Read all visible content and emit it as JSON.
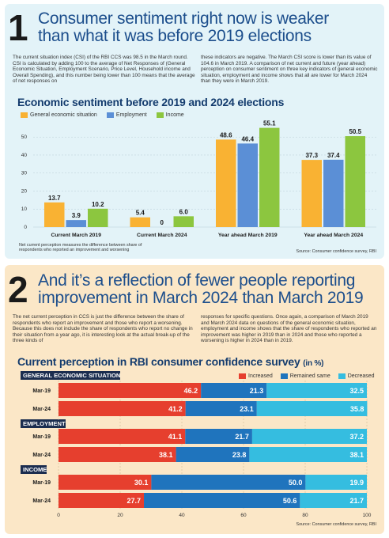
{
  "section1": {
    "number": "1",
    "headline_line1": "Consumer sentiment right now is weaker",
    "headline_line2": "than what it was before 2019 elections",
    "body_left": "The current situation index (CSI) of the RBI CCS was 98.5 in the March round. CSI is calculated by adding 100 to the average of Net Responses of (General Economic Situation, Employment Scenario, Price Level, Household income and Overall Spending), and this number being lower than 100 means that the average of net responses on",
    "body_right": "these indicators are negative. The March CSI score is lower than its value of 104.6 in March 2019. A comparison of net current and future (year ahead) perception on consumer sentiment on three key indicators of general economic situation, employment and income shows that all are lower for March 2024 than they were in March 2019.",
    "chart_title": "Economic sentiment before 2019 and 2024 elections",
    "note": "Net current perception measures the difference between share of respondents who reported an improvement and worsening",
    "source": "Source: Consumer confidence survey, RBI"
  },
  "section2": {
    "number": "2",
    "headline_line1": "And it’s a reflection of fewer people reporting",
    "headline_line2": "improvement in March 2024 than March 2019",
    "body_left": "The net current perception in CCS is just the difference between the share of respondents who report an improvement and those who report a worsening. Because this does not include the share of respondents who report no change in their situation from a year ago, it is interesting look at the actual break-up of the three kinds of",
    "body_right": "responses for specific questions. Once again, a comparison of March 2019 and March 2024 data on questions of the general economic situation, employment and income shows that the share of respondents who reported an improvement was higher in 2019 than in 2024 and those who reported a worsening is higher in 2024 than in 2019.",
    "chart_title": "Current perception in RBI consumer confidence survey",
    "chart_unit": "(in %)",
    "source": "Source: Consumer confidence survey, RBI"
  },
  "chart_data": [
    {
      "type": "bar",
      "title": "Economic sentiment before 2019 and 2024 elections",
      "categories": [
        "Current March 2019",
        "Current March 2024",
        "Year ahead March 2019",
        "Year ahead March 2024"
      ],
      "series": [
        {
          "name": "General economic situation",
          "color": "#f9b233",
          "values": [
            13.7,
            5.4,
            48.6,
            37.3
          ]
        },
        {
          "name": "Employment",
          "color": "#5b8fd6",
          "values": [
            3.9,
            0,
            46.4,
            37.4
          ]
        },
        {
          "name": "Income",
          "color": "#8cc63f",
          "values": [
            10.2,
            6.0,
            55.1,
            50.5
          ]
        }
      ],
      "value_labels": [
        [
          "13.7",
          "5.4",
          "48.6",
          "37.3"
        ],
        [
          "3.9",
          "0",
          "46.4",
          "37.4"
        ],
        [
          "10.2",
          "6.0",
          "55.1",
          "50.5"
        ]
      ],
      "y_ticks": [
        "0",
        "10",
        "20",
        "30",
        "40",
        "50"
      ],
      "ylim": [
        0,
        58
      ],
      "grid": true,
      "legend_position": "top-left"
    },
    {
      "type": "bar",
      "orientation": "horizontal-stacked",
      "title": "Current perception in RBI consumer confidence survey (in %)",
      "groups": [
        {
          "name": "GENERAL ECONOMIC SITUATION",
          "rows": [
            {
              "label": "Mar-19",
              "values": [
                46.2,
                21.3,
                32.5
              ],
              "labels": [
                "46.2",
                "21.3",
                "32.5"
              ]
            },
            {
              "label": "Mar-24",
              "values": [
                41.2,
                23.1,
                35.8
              ],
              "labels": [
                "41.2",
                "23.1",
                "35.8"
              ]
            }
          ]
        },
        {
          "name": "EMPLOYMENT",
          "rows": [
            {
              "label": "Mar-19",
              "values": [
                41.1,
                21.7,
                37.2
              ],
              "labels": [
                "41.1",
                "21.7",
                "37.2"
              ]
            },
            {
              "label": "Mar-24",
              "values": [
                38.1,
                23.8,
                38.1
              ],
              "labels": [
                "38.1",
                "23.8",
                "38.1"
              ]
            }
          ]
        },
        {
          "name": "INCOME",
          "rows": [
            {
              "label": "Mar-19",
              "values": [
                30.1,
                50.0,
                19.9
              ],
              "labels": [
                "30.1",
                "50.0",
                "19.9"
              ]
            },
            {
              "label": "Mar-24",
              "values": [
                27.7,
                50.6,
                21.7
              ],
              "labels": [
                "27.7",
                "50.6",
                "21.7"
              ]
            }
          ]
        }
      ],
      "series": [
        {
          "name": "Increased",
          "color": "#e63f2e"
        },
        {
          "name": "Remained same",
          "color": "#1f74bd"
        },
        {
          "name": "Decreased",
          "color": "#35bde0"
        }
      ],
      "x_ticks": [
        "0",
        "20",
        "40",
        "60",
        "80",
        "100"
      ],
      "xlim": [
        0,
        100
      ],
      "legend_position": "top-right"
    }
  ]
}
